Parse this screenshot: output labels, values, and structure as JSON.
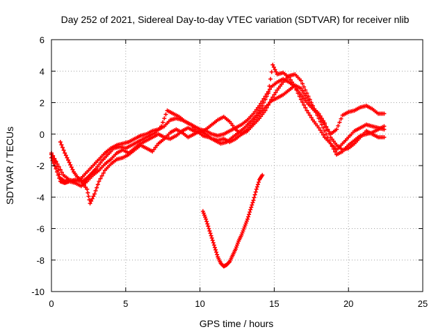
{
  "chart_data": {
    "type": "scatter",
    "title": "Day 252 of 2021, Sidereal Day-to-day VTEC variation (SDTVAR) for receiver nlib",
    "xlabel": "GPS time / hours",
    "ylabel": "SDTVAR / TECUs",
    "xlim": [
      0,
      25
    ],
    "ylim": [
      -10,
      6
    ],
    "xticks": [
      "0",
      "5",
      "10",
      "15",
      "20",
      "25"
    ],
    "yticks": [
      "-10",
      "-8",
      "-6",
      "-4",
      "-2",
      "0",
      "2",
      "4",
      "6"
    ],
    "grid": true,
    "marker": "+",
    "color": "#ff0000",
    "series": [
      {
        "name": "track-1",
        "points": [
          [
            0,
            -1.3
          ],
          [
            0.3,
            -1.8
          ],
          [
            0.6,
            -2.8
          ],
          [
            0.9,
            -3.0
          ],
          [
            1.2,
            -3.0
          ],
          [
            1.6,
            -3.1
          ],
          [
            2.0,
            -3.3
          ],
          [
            2.4,
            -3.0
          ],
          [
            2.8,
            -2.6
          ],
          [
            3.2,
            -2.3
          ],
          [
            3.6,
            -1.9
          ],
          [
            4.0,
            -1.6
          ],
          [
            4.4,
            -1.2
          ],
          [
            4.8,
            -1.0
          ],
          [
            5.2,
            -1.2
          ],
          [
            5.6,
            -0.9
          ],
          [
            6.0,
            -0.6
          ],
          [
            6.4,
            -0.4
          ],
          [
            6.8,
            -0.2
          ],
          [
            7.2,
            0.0
          ],
          [
            7.6,
            -0.2
          ],
          [
            8.0,
            -0.3
          ],
          [
            8.4,
            -0.1
          ],
          [
            8.8,
            0.2
          ],
          [
            9.2,
            0.4
          ],
          [
            9.6,
            0.2
          ],
          [
            10.0,
            0.1
          ],
          [
            10.4,
            0.3
          ],
          [
            10.8,
            0.6
          ],
          [
            11.2,
            0.9
          ],
          [
            11.6,
            1.1
          ],
          [
            12.0,
            0.8
          ],
          [
            12.4,
            0.3
          ],
          [
            12.8,
            0.0
          ],
          [
            13.2,
            0.2
          ],
          [
            13.6,
            0.6
          ],
          [
            14.0,
            1.0
          ],
          [
            14.4,
            1.5
          ],
          [
            14.8,
            2.2
          ],
          [
            15.2,
            2.8
          ],
          [
            15.6,
            3.3
          ],
          [
            16.0,
            3.7
          ],
          [
            16.4,
            3.8
          ],
          [
            16.8,
            3.4
          ],
          [
            17.2,
            2.6
          ],
          [
            17.6,
            1.8
          ],
          [
            18.0,
            1.0
          ],
          [
            18.4,
            0.2
          ],
          [
            18.8,
            -0.6
          ],
          [
            19.2,
            -1.0
          ],
          [
            19.6,
            -0.6
          ],
          [
            20.0,
            -0.2
          ],
          [
            20.4,
            0.2
          ],
          [
            20.8,
            0.4
          ],
          [
            21.2,
            0.6
          ],
          [
            21.6,
            0.5
          ],
          [
            22.0,
            0.4
          ],
          [
            22.4,
            0.3
          ]
        ]
      },
      {
        "name": "track-2",
        "points": [
          [
            0,
            -1.5
          ],
          [
            0.3,
            -2.2
          ],
          [
            0.6,
            -3.0
          ],
          [
            0.9,
            -3.1
          ],
          [
            1.2,
            -3.0
          ],
          [
            1.6,
            -2.9
          ],
          [
            2.0,
            -3.0
          ],
          [
            2.4,
            -3.5
          ],
          [
            2.6,
            -4.4
          ],
          [
            2.9,
            -3.8
          ],
          [
            3.2,
            -3.0
          ],
          [
            3.6,
            -2.3
          ],
          [
            4.0,
            -1.9
          ],
          [
            4.4,
            -1.6
          ],
          [
            4.8,
            -1.5
          ],
          [
            5.2,
            -1.3
          ],
          [
            5.6,
            -1.0
          ],
          [
            6.0,
            -0.7
          ],
          [
            6.4,
            -0.9
          ],
          [
            6.8,
            -1.1
          ],
          [
            7.2,
            -0.6
          ],
          [
            7.6,
            -0.3
          ],
          [
            8.0,
            0.1
          ],
          [
            8.4,
            0.3
          ],
          [
            8.8,
            0.1
          ],
          [
            9.2,
            -0.2
          ],
          [
            9.6,
            0.0
          ],
          [
            10.0,
            0.2
          ],
          [
            10.4,
            0.0
          ],
          [
            10.8,
            -0.3
          ],
          [
            11.2,
            -0.4
          ],
          [
            11.6,
            -0.3
          ],
          [
            12.0,
            -0.5
          ],
          [
            12.4,
            -0.3
          ],
          [
            12.8,
            0.0
          ],
          [
            13.2,
            0.3
          ],
          [
            13.6,
            0.8
          ],
          [
            14.0,
            1.3
          ],
          [
            14.4,
            1.7
          ],
          [
            14.8,
            2.1
          ],
          [
            15.2,
            2.3
          ],
          [
            15.6,
            2.5
          ],
          [
            16.0,
            2.8
          ],
          [
            16.4,
            3.1
          ],
          [
            16.8,
            2.9
          ],
          [
            17.2,
            2.3
          ],
          [
            17.6,
            1.7
          ],
          [
            18.0,
            1.3
          ],
          [
            18.4,
            0.7
          ],
          [
            18.8,
            -0.2
          ],
          [
            19.2,
            -0.7
          ],
          [
            19.6,
            -1.0
          ],
          [
            20.0,
            -0.9
          ],
          [
            20.4,
            -0.6
          ],
          [
            20.8,
            -0.2
          ],
          [
            21.2,
            0.2
          ],
          [
            21.6,
            0.0
          ],
          [
            22.0,
            -0.2
          ],
          [
            22.4,
            -0.2
          ]
        ]
      },
      {
        "name": "track-3",
        "points": [
          [
            0.6,
            -0.5
          ],
          [
            0.9,
            -1.2
          ],
          [
            1.2,
            -1.8
          ],
          [
            1.5,
            -2.4
          ],
          [
            1.8,
            -2.8
          ],
          [
            2.1,
            -3.0
          ],
          [
            2.4,
            -2.8
          ],
          [
            2.7,
            -2.5
          ],
          [
            3.0,
            -2.2
          ],
          [
            3.4,
            -1.7
          ],
          [
            3.8,
            -1.3
          ],
          [
            4.2,
            -0.9
          ],
          [
            4.6,
            -0.8
          ],
          [
            5.0,
            -0.9
          ],
          [
            5.4,
            -0.7
          ],
          [
            5.8,
            -0.5
          ],
          [
            6.2,
            -0.3
          ],
          [
            6.6,
            -0.1
          ],
          [
            7.0,
            0.1
          ],
          [
            7.4,
            0.5
          ],
          [
            7.8,
            1.5
          ],
          [
            8.2,
            1.3
          ],
          [
            8.6,
            1.1
          ],
          [
            9.0,
            0.8
          ],
          [
            9.4,
            0.6
          ],
          [
            9.8,
            0.2
          ],
          [
            10.2,
            -0.1
          ],
          [
            10.6,
            -0.2
          ],
          [
            11.0,
            -0.4
          ],
          [
            11.4,
            -0.6
          ],
          [
            11.8,
            -0.5
          ],
          [
            12.2,
            -0.2
          ],
          [
            12.6,
            0.1
          ],
          [
            13.0,
            0.4
          ],
          [
            13.4,
            0.8
          ],
          [
            13.8,
            1.2
          ],
          [
            14.2,
            1.8
          ],
          [
            14.6,
            2.6
          ],
          [
            14.9,
            4.4
          ],
          [
            15.2,
            3.8
          ],
          [
            15.6,
            3.9
          ],
          [
            16.0,
            3.6
          ],
          [
            16.4,
            3.0
          ],
          [
            16.8,
            2.2
          ],
          [
            17.2,
            1.5
          ],
          [
            17.6,
            0.9
          ],
          [
            18.0,
            0.4
          ],
          [
            18.4,
            -0.2
          ],
          [
            18.8,
            -0.6
          ],
          [
            19.2,
            -1.3
          ],
          [
            19.6,
            -1.1
          ],
          [
            20.0,
            -0.7
          ],
          [
            20.4,
            -0.4
          ],
          [
            20.8,
            -0.1
          ],
          [
            21.2,
            0.0
          ],
          [
            21.6,
            0.1
          ],
          [
            22.0,
            0.3
          ],
          [
            22.4,
            0.5
          ]
        ]
      },
      {
        "name": "track-4",
        "points": [
          [
            0,
            -1.2
          ],
          [
            0.4,
            -1.9
          ],
          [
            0.8,
            -2.6
          ],
          [
            1.2,
            -2.9
          ],
          [
            1.6,
            -3.0
          ],
          [
            2.0,
            -2.8
          ],
          [
            2.4,
            -2.4
          ],
          [
            2.8,
            -2.0
          ],
          [
            3.2,
            -1.6
          ],
          [
            3.6,
            -1.2
          ],
          [
            4.0,
            -0.9
          ],
          [
            4.4,
            -0.7
          ],
          [
            4.8,
            -0.6
          ],
          [
            5.2,
            -0.5
          ],
          [
            5.6,
            -0.3
          ],
          [
            6.0,
            -0.1
          ],
          [
            6.4,
            0.0
          ],
          [
            6.8,
            0.2
          ],
          [
            7.2,
            0.3
          ],
          [
            7.6,
            0.5
          ],
          [
            8.0,
            0.9
          ],
          [
            8.4,
            1.0
          ],
          [
            8.8,
            0.9
          ],
          [
            9.2,
            0.7
          ],
          [
            9.6,
            0.5
          ],
          [
            10.0,
            0.3
          ],
          [
            10.4,
            0.2
          ],
          [
            10.8,
            0.0
          ],
          [
            11.2,
            -0.1
          ],
          [
            11.6,
            0.0
          ],
          [
            12.0,
            0.2
          ],
          [
            12.4,
            0.4
          ],
          [
            12.8,
            0.6
          ],
          [
            13.2,
            0.9
          ],
          [
            13.6,
            1.3
          ],
          [
            14.0,
            1.8
          ],
          [
            14.4,
            2.4
          ],
          [
            14.8,
            3.0
          ],
          [
            15.2,
            3.3
          ],
          [
            15.6,
            3.5
          ],
          [
            16.0,
            3.3
          ],
          [
            16.4,
            3.0
          ],
          [
            16.8,
            2.5
          ],
          [
            17.2,
            2.0
          ],
          [
            17.6,
            1.6
          ],
          [
            18.0,
            1.2
          ],
          [
            18.4,
            0.6
          ],
          [
            18.8,
            0.0
          ],
          [
            19.2,
            0.3
          ],
          [
            19.6,
            1.2
          ],
          [
            20.0,
            1.4
          ],
          [
            20.4,
            1.5
          ],
          [
            20.8,
            1.7
          ],
          [
            21.2,
            1.8
          ],
          [
            21.6,
            1.6
          ],
          [
            22.0,
            1.3
          ],
          [
            22.4,
            1.3
          ]
        ]
      },
      {
        "name": "track-5",
        "points": [
          [
            10.2,
            -4.9
          ],
          [
            10.4,
            -5.4
          ],
          [
            10.6,
            -6.0
          ],
          [
            10.8,
            -6.6
          ],
          [
            11.0,
            -7.2
          ],
          [
            11.2,
            -7.8
          ],
          [
            11.4,
            -8.2
          ],
          [
            11.6,
            -8.4
          ],
          [
            11.8,
            -8.3
          ],
          [
            12.0,
            -8.1
          ],
          [
            12.2,
            -7.7
          ],
          [
            12.4,
            -7.3
          ],
          [
            12.6,
            -6.8
          ],
          [
            12.8,
            -6.4
          ],
          [
            13.0,
            -5.9
          ],
          [
            13.2,
            -5.4
          ],
          [
            13.4,
            -4.8
          ],
          [
            13.6,
            -4.2
          ],
          [
            13.8,
            -3.5
          ],
          [
            14.0,
            -2.9
          ],
          [
            14.2,
            -2.6
          ]
        ]
      }
    ]
  }
}
